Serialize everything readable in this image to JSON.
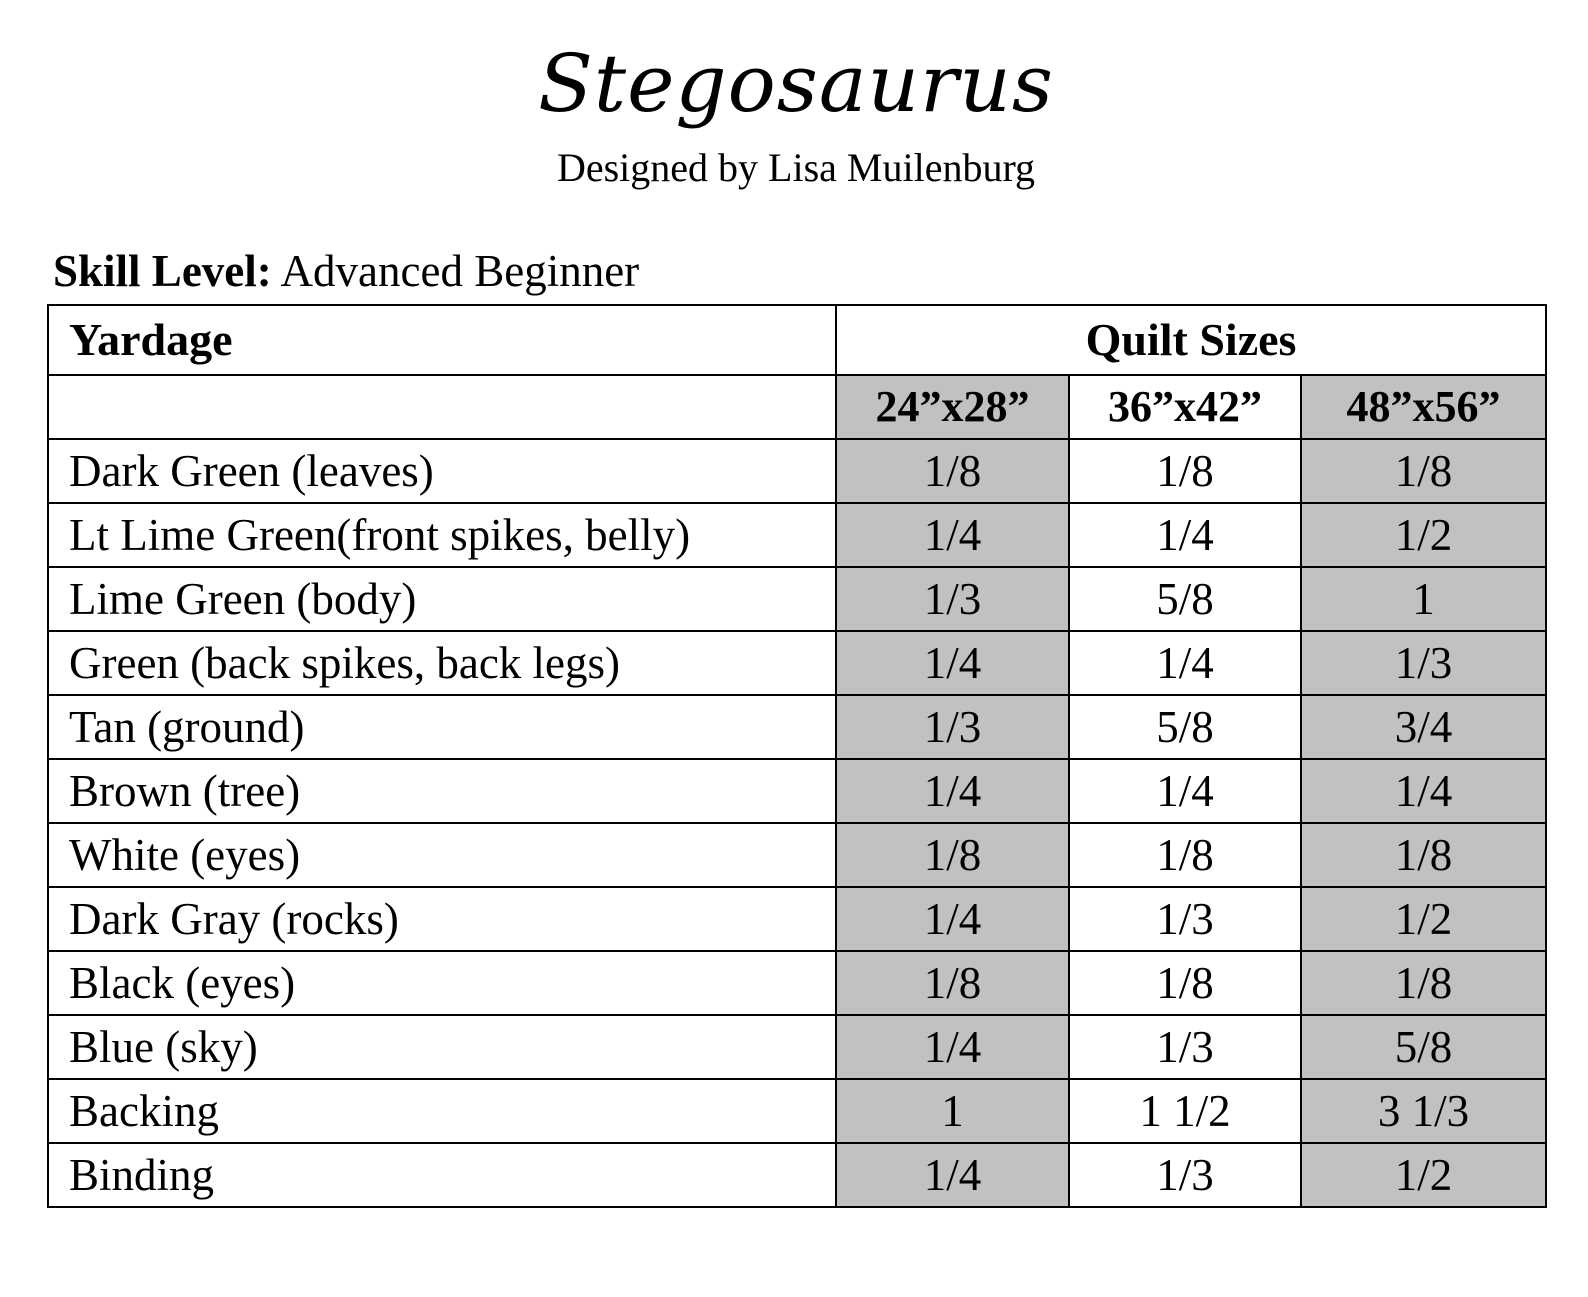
{
  "header": {
    "title": "Stegosaurus",
    "subtitle": "Designed by Lisa Muilenburg"
  },
  "skill": {
    "label": "Skill Level:",
    "value": " Advanced Beginner"
  },
  "table": {
    "corner_header": "Yardage",
    "group_header": "Quilt Sizes",
    "size_headers": [
      "24”x28”",
      "36”x42”",
      "48”x56”"
    ],
    "rows": [
      {
        "label": "Dark Green (leaves)",
        "values": [
          "1/8",
          "1/8",
          "1/8"
        ]
      },
      {
        "label": "Lt Lime Green(front spikes, belly)",
        "values": [
          "1/4",
          "1/4",
          "1/2"
        ]
      },
      {
        "label": "Lime Green (body)",
        "values": [
          "1/3",
          "5/8",
          "1"
        ]
      },
      {
        "label": "Green (back spikes, back legs)",
        "values": [
          "1/4",
          "1/4",
          "1/3"
        ]
      },
      {
        "label": "Tan (ground)",
        "values": [
          "1/3",
          "5/8",
          "3/4"
        ]
      },
      {
        "label": "Brown (tree)",
        "values": [
          "1/4",
          "1/4",
          "1/4"
        ]
      },
      {
        "label": "White (eyes)",
        "values": [
          "1/8",
          "1/8",
          "1/8"
        ]
      },
      {
        "label": "Dark Gray (rocks)",
        "values": [
          "1/4",
          "1/3",
          "1/2"
        ]
      },
      {
        "label": "Black (eyes)",
        "values": [
          "1/8",
          "1/8",
          "1/8"
        ]
      },
      {
        "label": "Blue (sky)",
        "values": [
          "1/4",
          "1/3",
          "5/8"
        ]
      },
      {
        "label": "Backing",
        "values": [
          "1",
          "1 1/2",
          "3 1/3"
        ]
      },
      {
        "label": "Binding",
        "values": [
          "1/4",
          "1/3",
          "1/2"
        ]
      }
    ]
  },
  "colors": {
    "shaded_column": "#c1c1c1",
    "border": "#000000",
    "background": "#ffffff"
  }
}
